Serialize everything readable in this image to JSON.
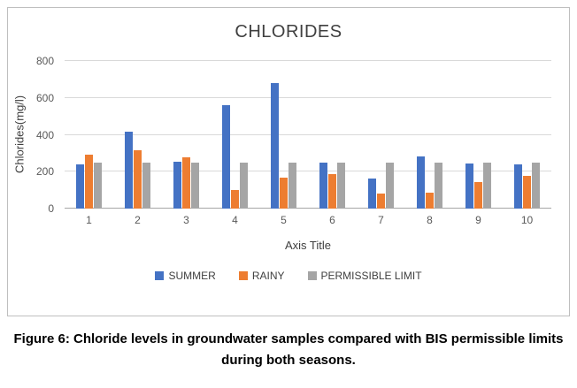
{
  "figure": {
    "caption": "Figure 6: Chloride levels in groundwater samples compared with BIS permissible limits during both seasons."
  },
  "chart_data": {
    "type": "bar",
    "title": "CHLORIDES",
    "xlabel": "Axis Title",
    "ylabel": "Chlorides(mg/l)",
    "ylim": [
      0,
      800
    ],
    "yticks": [
      0,
      200,
      400,
      600,
      800
    ],
    "grid": true,
    "legend_position": "bottom",
    "categories": [
      "1",
      "2",
      "3",
      "4",
      "5",
      "6",
      "7",
      "8",
      "9",
      "10"
    ],
    "series": [
      {
        "name": "SUMMER",
        "color": "#4472C4",
        "values": [
          240,
          415,
          255,
          560,
          680,
          250,
          165,
          285,
          245,
          240
        ]
      },
      {
        "name": "RAINY",
        "color": "#ED7D31",
        "values": [
          290,
          315,
          278,
          100,
          170,
          185,
          80,
          88,
          143,
          175
        ]
      },
      {
        "name": "PERMISSIBLE LIMIT",
        "color": "#A5A5A5",
        "values": [
          250,
          250,
          250,
          250,
          250,
          250,
          250,
          250,
          250,
          250
        ]
      }
    ]
  }
}
